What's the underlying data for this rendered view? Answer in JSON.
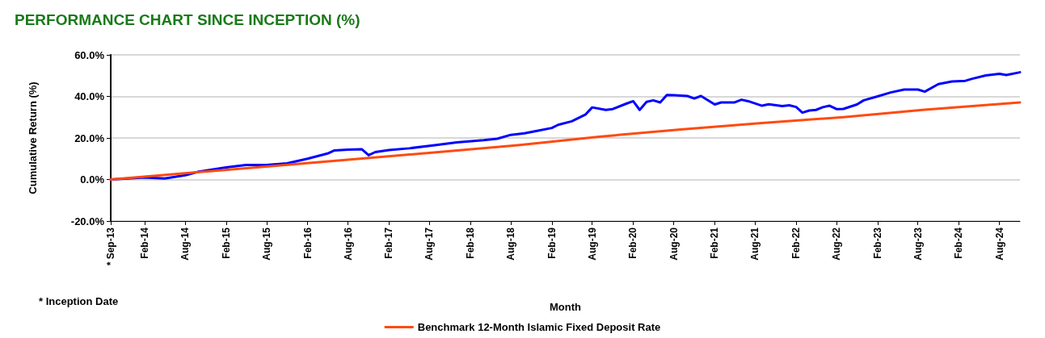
{
  "chart_data": {
    "type": "line",
    "title": "PERFORMANCE CHART SINCE INCEPTION (%)",
    "xlabel": "Month",
    "ylabel": "Cumulative Return (%)",
    "annotations": [
      "* Inception Date"
    ],
    "xlim": [
      "2013-09",
      "2024-11"
    ],
    "xticks": [
      {
        "value": "2013-09",
        "label": "* Sep-13"
      },
      {
        "value": "2014-02",
        "label": "Feb-14"
      },
      {
        "value": "2014-08",
        "label": "Aug-14"
      },
      {
        "value": "2015-02",
        "label": "Feb-15"
      },
      {
        "value": "2015-08",
        "label": "Aug-15"
      },
      {
        "value": "2016-02",
        "label": "Feb-16"
      },
      {
        "value": "2016-08",
        "label": "Aug-16"
      },
      {
        "value": "2017-02",
        "label": "Feb-17"
      },
      {
        "value": "2017-08",
        "label": "Aug-17"
      },
      {
        "value": "2018-02",
        "label": "Feb-18"
      },
      {
        "value": "2018-08",
        "label": "Aug-18"
      },
      {
        "value": "2019-02",
        "label": "Feb-19"
      },
      {
        "value": "2019-08",
        "label": "Aug-19"
      },
      {
        "value": "2020-02",
        "label": "Feb-20"
      },
      {
        "value": "2020-08",
        "label": "Aug-20"
      },
      {
        "value": "2021-02",
        "label": "Feb-21"
      },
      {
        "value": "2021-08",
        "label": "Aug-21"
      },
      {
        "value": "2022-02",
        "label": "Feb-22"
      },
      {
        "value": "2022-08",
        "label": "Aug-22"
      },
      {
        "value": "2023-02",
        "label": "Feb-23"
      },
      {
        "value": "2023-08",
        "label": "Aug-23"
      },
      {
        "value": "2024-02",
        "label": "Feb-24"
      },
      {
        "value": "2024-08",
        "label": "Aug-24"
      }
    ],
    "ylim": [
      -20,
      60
    ],
    "yticks": [
      {
        "value": -20,
        "label": "-20.0%"
      },
      {
        "value": 0,
        "label": "0.0%"
      },
      {
        "value": 20,
        "label": "20.0%"
      },
      {
        "value": 40,
        "label": "40.0%"
      },
      {
        "value": 60,
        "label": "60.0%"
      }
    ],
    "grid": "y",
    "legend": "bottom",
    "marker": "none",
    "line_style": "solid",
    "series": [
      {
        "color": "#0000ff",
        "x": [
          "2013-09",
          "2014-02",
          "2014-05",
          "2014-08",
          "2014-10",
          "2015-02",
          "2015-05",
          "2015-08",
          "2015-11",
          "2016-02",
          "2016-05",
          "2016-06",
          "2016-08",
          "2016-10",
          "2016-11",
          "2016-12",
          "2017-02",
          "2017-05",
          "2017-09",
          "2017-12",
          "2018-04",
          "2018-06",
          "2018-08",
          "2018-10",
          "2018-12",
          "2019-02",
          "2019-03",
          "2019-05",
          "2019-07",
          "2019-08",
          "2019-10",
          "2019-11",
          "2020-01",
          "2020-02",
          "2020-03",
          "2020-04",
          "2020-05",
          "2020-06",
          "2020-07",
          "2020-08",
          "2020-10",
          "2020-11",
          "2020-12",
          "2021-02",
          "2021-03",
          "2021-05",
          "2021-06",
          "2021-07",
          "2021-09",
          "2021-10",
          "2021-12",
          "2022-01",
          "2022-02",
          "2022-03",
          "2022-04",
          "2022-05",
          "2022-06",
          "2022-07",
          "2022-08",
          "2022-09",
          "2022-11",
          "2022-12",
          "2023-02",
          "2023-04",
          "2023-06",
          "2023-08",
          "2023-09",
          "2023-11",
          "2024-01",
          "2024-03",
          "2024-04",
          "2024-06",
          "2024-08",
          "2024-09",
          "2024-11"
        ],
        "values": [
          0,
          1.0,
          0.5,
          2.0,
          3.8,
          5.8,
          7.0,
          7.0,
          7.8,
          10.0,
          12.5,
          14.0,
          14.4,
          14.6,
          11.7,
          13.2,
          14.2,
          15.0,
          16.6,
          17.9,
          18.9,
          19.6,
          21.5,
          22.2,
          23.5,
          24.8,
          26.3,
          28.0,
          31.2,
          34.7,
          33.5,
          33.9,
          36.5,
          37.7,
          33.5,
          37.4,
          38.1,
          37.1,
          40.7,
          40.6,
          40.2,
          39.0,
          40.2,
          36.1,
          37.1,
          37.1,
          38.4,
          37.7,
          35.5,
          36.2,
          35.3,
          35.7,
          34.9,
          32.2,
          33.2,
          33.5,
          34.8,
          35.5,
          33.9,
          34.0,
          36.1,
          38.1,
          40.0,
          41.9,
          43.3,
          43.3,
          42.3,
          45.9,
          47.2,
          47.5,
          48.5,
          50.1,
          50.9,
          50.3,
          51.6
        ]
      },
      {
        "name": "Benchmark 12-Month Islamic Fixed Deposit Rate",
        "color": "#ff4a10",
        "x": [
          "2013-09",
          "2014-09",
          "2015-09",
          "2016-09",
          "2017-09",
          "2018-09",
          "2019-09",
          "2020-09",
          "2021-09",
          "2022-09",
          "2023-09",
          "2024-11"
        ],
        "values": [
          0,
          3.3,
          6.5,
          9.8,
          13.1,
          16.5,
          20.6,
          24.1,
          27.2,
          30.0,
          33.6,
          37.1
        ]
      }
    ]
  }
}
